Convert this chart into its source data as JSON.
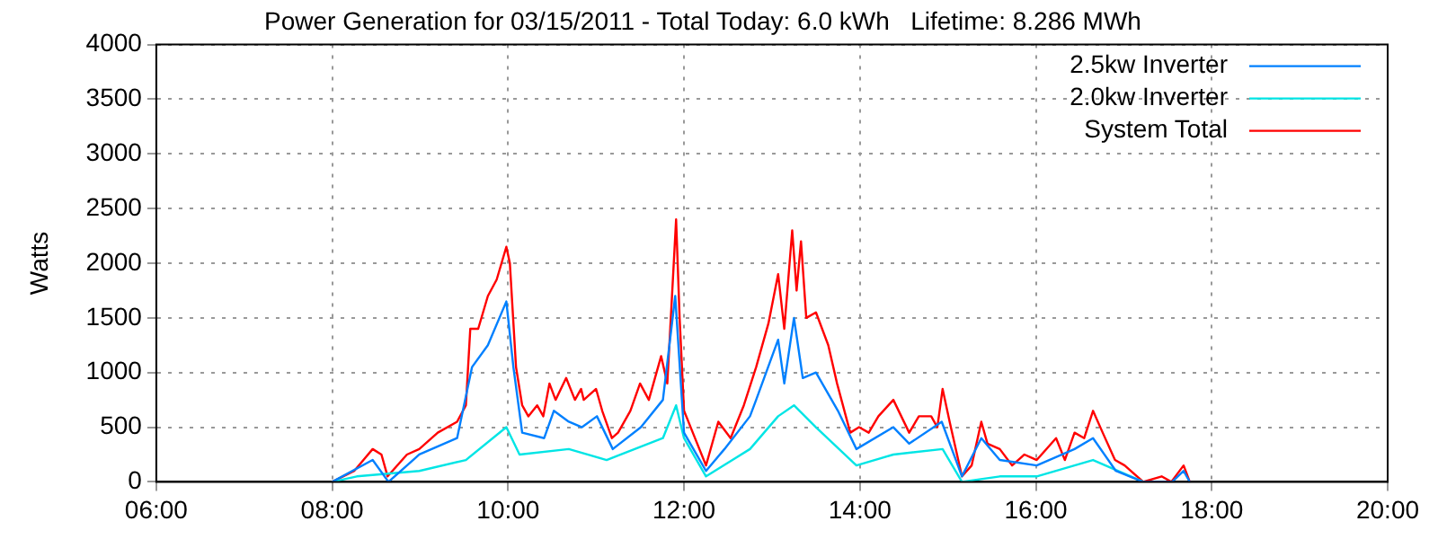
{
  "chart_data": {
    "type": "line",
    "title": "Power Generation for 03/15/2011 - Total Today: 6.0 kWh   Lifetime: 8.286 MWh",
    "ylabel": "Watts",
    "xlim": [
      6,
      20
    ],
    "xticks": [
      {
        "value": 6,
        "label": "06:00"
      },
      {
        "value": 8,
        "label": "08:00"
      },
      {
        "value": 10,
        "label": "10:00"
      },
      {
        "value": 12,
        "label": "12:00"
      },
      {
        "value": 14,
        "label": "14:00"
      },
      {
        "value": 16,
        "label": "16:00"
      },
      {
        "value": 18,
        "label": "18:00"
      },
      {
        "value": 20,
        "label": "20:00"
      }
    ],
    "ylim": [
      0,
      4000
    ],
    "yticks": [
      0,
      500,
      1000,
      1500,
      2000,
      2500,
      3000,
      3500,
      4000
    ],
    "grid": true,
    "legend": "top right",
    "marker": "none",
    "line_style": "solid",
    "series": [
      {
        "name": "2.5kw Inverter",
        "color": "#0080ff",
        "x": [
          8.0,
          8.46,
          8.64,
          8.99,
          9.42,
          9.59,
          9.77,
          9.98,
          10.06,
          10.16,
          10.41,
          10.52,
          10.69,
          10.84,
          11.01,
          11.19,
          11.51,
          11.76,
          11.9,
          12.0,
          12.25,
          12.46,
          12.75,
          12.82,
          13.07,
          13.14,
          13.25,
          13.35,
          13.5,
          13.75,
          13.96,
          14.38,
          14.56,
          14.93,
          15.16,
          15.38,
          15.59,
          16.01,
          16.44,
          16.65,
          16.91,
          17.22,
          17.55,
          17.68,
          17.75
        ],
        "values": [
          0,
          200,
          0,
          250,
          400,
          1050,
          1250,
          1650,
          1050,
          450,
          400,
          650,
          550,
          500,
          600,
          300,
          500,
          750,
          1700,
          450,
          100,
          300,
          600,
          750,
          1300,
          900,
          1500,
          950,
          1000,
          650,
          300,
          500,
          350,
          550,
          50,
          400,
          200,
          150,
          300,
          400,
          100,
          0,
          0,
          100,
          0
        ]
      },
      {
        "name": "2.0kw Inverter",
        "color": "#00e5e5",
        "x": [
          8.0,
          8.28,
          8.99,
          9.52,
          9.98,
          10.13,
          10.69,
          11.12,
          11.76,
          11.91,
          12.0,
          12.25,
          12.75,
          13.07,
          13.25,
          13.5,
          13.96,
          14.38,
          14.94,
          15.16,
          15.59,
          16.01,
          16.65,
          17.22
        ],
        "values": [
          0,
          50,
          100,
          200,
          500,
          250,
          300,
          200,
          400,
          700,
          400,
          50,
          300,
          600,
          700,
          500,
          150,
          250,
          300,
          0,
          50,
          50,
          200,
          0
        ]
      },
      {
        "name": "System Total",
        "color": "#ff0000",
        "x": [
          8.0,
          8.25,
          8.46,
          8.56,
          8.63,
          8.85,
          8.99,
          9.2,
          9.42,
          9.52,
          9.57,
          9.66,
          9.77,
          9.87,
          9.98,
          10.02,
          10.09,
          10.16,
          10.23,
          10.33,
          10.4,
          10.47,
          10.54,
          10.66,
          10.76,
          10.83,
          10.86,
          11.0,
          11.07,
          11.18,
          11.25,
          11.39,
          11.5,
          11.6,
          11.74,
          11.81,
          11.91,
          11.95,
          12.0,
          12.1,
          12.25,
          12.39,
          12.53,
          12.68,
          12.82,
          12.96,
          13.07,
          13.14,
          13.23,
          13.28,
          13.33,
          13.39,
          13.5,
          13.64,
          13.74,
          13.89,
          13.99,
          14.1,
          14.21,
          14.38,
          14.56,
          14.67,
          14.81,
          14.88,
          14.94,
          15.02,
          15.16,
          15.27,
          15.38,
          15.45,
          15.59,
          15.73,
          15.87,
          16.01,
          16.23,
          16.33,
          16.44,
          16.55,
          16.65,
          16.76,
          16.9,
          17.01,
          17.22,
          17.43,
          17.54,
          17.68,
          17.75
        ],
        "values": [
          0,
          100,
          300,
          250,
          50,
          250,
          300,
          450,
          550,
          700,
          1400,
          1400,
          1700,
          1850,
          2150,
          2000,
          1050,
          700,
          600,
          700,
          600,
          900,
          750,
          950,
          750,
          850,
          750,
          850,
          650,
          400,
          450,
          650,
          900,
          750,
          1150,
          900,
          2400,
          1500,
          650,
          450,
          150,
          550,
          400,
          700,
          1050,
          1450,
          1900,
          1400,
          2300,
          1750,
          2200,
          1500,
          1550,
          1250,
          900,
          450,
          500,
          450,
          600,
          750,
          450,
          600,
          600,
          500,
          850,
          550,
          50,
          150,
          550,
          350,
          300,
          150,
          250,
          200,
          400,
          200,
          450,
          400,
          650,
          450,
          200,
          150,
          0,
          50,
          0,
          150,
          0
        ]
      }
    ]
  }
}
